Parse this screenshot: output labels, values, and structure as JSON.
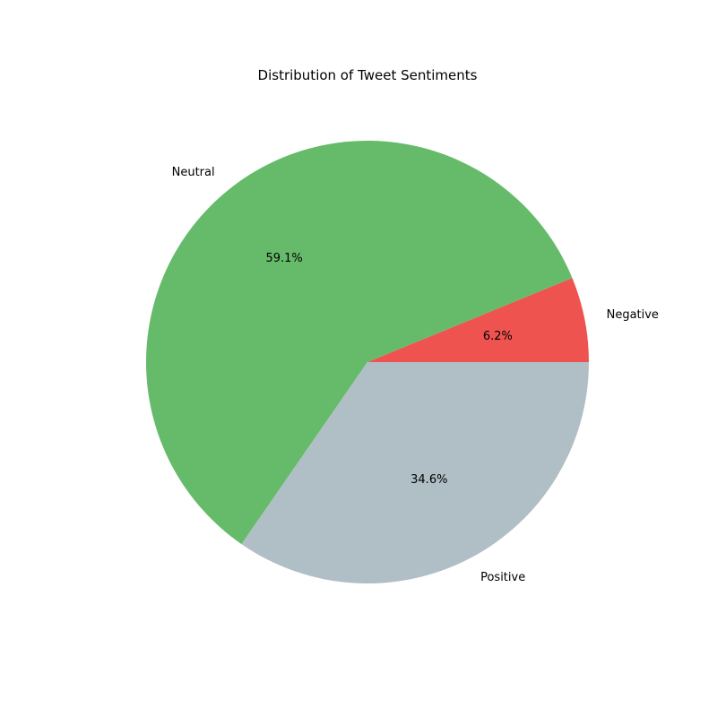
{
  "chart_data": {
    "type": "pie",
    "title": "Distribution of Tweet Sentiments",
    "start_angle_deg": 0,
    "direction": "counterclockwise",
    "slices": [
      {
        "label": "Negative",
        "value": 6.2,
        "pct_label": "6.2%",
        "color": "#ef5350"
      },
      {
        "label": "Neutral",
        "value": 59.1,
        "pct_label": "59.1%",
        "color": "#66bb6a"
      },
      {
        "label": "Positive",
        "value": 34.6,
        "pct_label": "34.6%",
        "color": "#b0bec5"
      }
    ]
  }
}
